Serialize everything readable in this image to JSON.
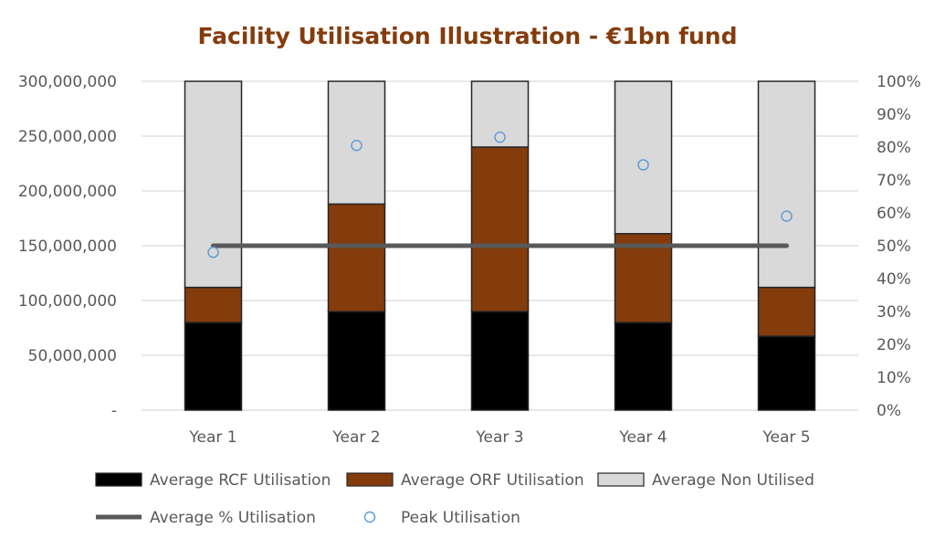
{
  "chart_data": {
    "type": "bar",
    "title": "Facility Utilisation Illustration - €1bn fund",
    "categories": [
      "Year 1",
      "Year 2",
      "Year 3",
      "Year 4",
      "Year 5"
    ],
    "series": [
      {
        "name": "Average RCF Utilisation",
        "kind": "stacked-bar",
        "axis": "left",
        "color": "#000000",
        "values": [
          80000000,
          90000000,
          90000000,
          80000000,
          67500000
        ]
      },
      {
        "name": "Average ORF Utilisation",
        "kind": "stacked-bar",
        "axis": "left",
        "color": "#843C0C",
        "values": [
          32000000,
          98000000,
          150000000,
          81000000,
          44500000
        ]
      },
      {
        "name": "Average Non Utilised",
        "kind": "stacked-bar",
        "axis": "left",
        "color": "#D9D9D9",
        "values": [
          188000000,
          112000000,
          60000000,
          139000000,
          188000000
        ]
      },
      {
        "name": "Average % Utilisation",
        "kind": "line",
        "axis": "right",
        "color": "#595959",
        "values": [
          50,
          50,
          50,
          50,
          50
        ]
      },
      {
        "name": "Peak Utilisation",
        "kind": "marker",
        "axis": "right",
        "color": "#5B9BD5",
        "values": [
          48,
          80.5,
          83,
          74.6,
          59
        ]
      }
    ],
    "left_axis": {
      "min": 0,
      "max": 300000000,
      "ticks": [
        "-",
        "50,000,000",
        "100,000,000",
        "150,000,000",
        "200,000,000",
        "250,000,000",
        "300,000,000"
      ]
    },
    "right_axis": {
      "min": 0,
      "max": 100,
      "ticks": [
        "0%",
        "10%",
        "20%",
        "30%",
        "40%",
        "50%",
        "60%",
        "70%",
        "80%",
        "90%",
        "100%"
      ]
    },
    "grid": true,
    "legend": "bottom"
  }
}
